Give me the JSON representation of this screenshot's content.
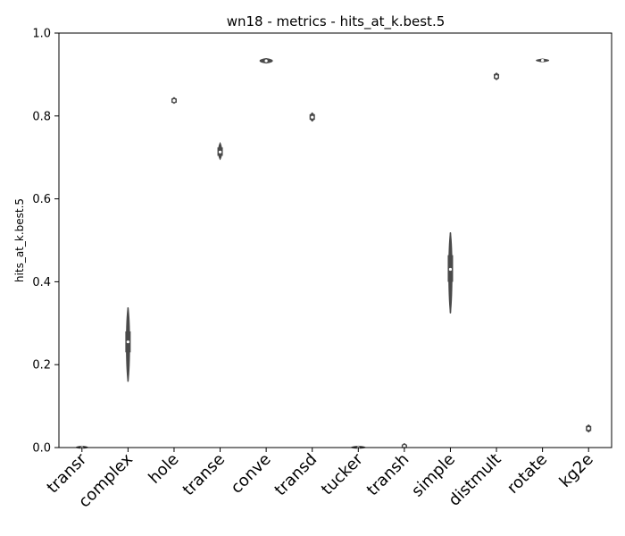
{
  "chart_data": {
    "type": "violin",
    "title": "wn18 - metrics - hits_at_k.best.5",
    "xlabel": "",
    "ylabel": "hits_at_k.best.5",
    "ylim": [
      0,
      1.0
    ],
    "yticks": [
      "0.0",
      "0.2",
      "0.4",
      "0.6",
      "0.8",
      "1.0"
    ],
    "grid": false,
    "colors": {
      "violin": "#4a4a4a",
      "median": "#ffffff",
      "axis": "#000000"
    },
    "categories": [
      "transr",
      "complex",
      "hole",
      "transe",
      "conve",
      "transd",
      "tucker",
      "transh",
      "simple",
      "distmult",
      "rotate",
      "kg2e"
    ],
    "series": [
      {
        "category": "transr",
        "min": 0.0,
        "q1": 0.0,
        "median": 0.0,
        "q3": 0.001,
        "max": 0.002,
        "spread": 0.34
      },
      {
        "category": "complex",
        "min": 0.16,
        "q1": 0.232,
        "median": 0.255,
        "q3": 0.278,
        "max": 0.337,
        "spread": 0.09
      },
      {
        "category": "hole",
        "min": 0.832,
        "q1": 0.834,
        "median": 0.837,
        "q3": 0.84,
        "max": 0.843,
        "spread": 0.12
      },
      {
        "category": "transe",
        "min": 0.697,
        "q1": 0.706,
        "median": 0.713,
        "q3": 0.722,
        "max": 0.733,
        "spread": 0.09
      },
      {
        "category": "conve",
        "min": 0.929,
        "q1": 0.931,
        "median": 0.933,
        "q3": 0.935,
        "max": 0.937,
        "spread": 0.36
      },
      {
        "category": "transd",
        "min": 0.789,
        "q1": 0.793,
        "median": 0.797,
        "q3": 0.802,
        "max": 0.806,
        "spread": 0.12
      },
      {
        "category": "tucker",
        "min": 0.0,
        "q1": 0.0,
        "median": 0.0,
        "q3": 0.001,
        "max": 0.002,
        "spread": 0.4
      },
      {
        "category": "transh",
        "min": 0.0,
        "q1": 0.001,
        "median": 0.003,
        "q3": 0.005,
        "max": 0.008,
        "spread": 0.12
      },
      {
        "category": "simple",
        "min": 0.325,
        "q1": 0.402,
        "median": 0.43,
        "q3": 0.462,
        "max": 0.518,
        "spread": 0.09
      },
      {
        "category": "distmult",
        "min": 0.889,
        "q1": 0.892,
        "median": 0.895,
        "q3": 0.899,
        "max": 0.902,
        "spread": 0.12
      },
      {
        "category": "rotate",
        "min": 0.932,
        "q1": 0.933,
        "median": 0.934,
        "q3": 0.935,
        "max": 0.936,
        "spread": 0.36
      },
      {
        "category": "kg2e",
        "min": 0.039,
        "q1": 0.042,
        "median": 0.046,
        "q3": 0.05,
        "max": 0.053,
        "spread": 0.12
      }
    ]
  }
}
